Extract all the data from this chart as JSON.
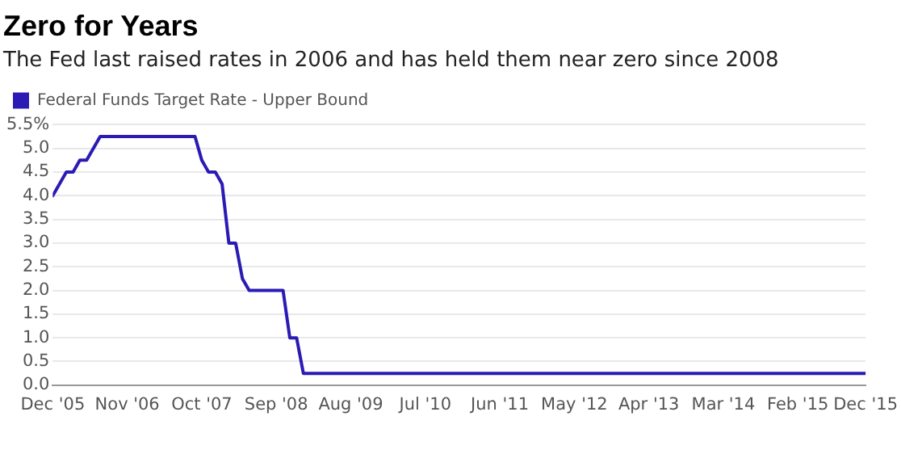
{
  "chart_data": {
    "type": "line",
    "title": "Zero for Years",
    "subtitle": "The Fed last raised rates in 2006 and has held them near zero since 2008",
    "x": [
      "2005-12",
      "2006-02",
      "2006-03",
      "2006-04",
      "2006-05",
      "2006-07",
      "2007-09",
      "2007-10",
      "2007-11",
      "2007-12",
      "2008-01",
      "2008-02",
      "2008-03",
      "2008-04",
      "2008-05",
      "2008-10",
      "2008-11",
      "2008-12",
      "2009-01",
      "2015-12"
    ],
    "series": [
      {
        "name": "Federal Funds Target Rate - Upper Bound",
        "color": "#2b1bb5",
        "values": [
          4.0,
          4.5,
          4.5,
          4.75,
          4.75,
          5.25,
          5.25,
          4.75,
          4.5,
          4.5,
          4.25,
          3.0,
          3.0,
          2.25,
          2.0,
          2.0,
          1.0,
          1.0,
          0.25,
          0.25
        ]
      }
    ],
    "xlim": [
      "2005-12",
      "2015-12"
    ],
    "xticks": [
      {
        "value": "2005-12",
        "label": "Dec '05"
      },
      {
        "value": "2006-11",
        "label": "Nov '06"
      },
      {
        "value": "2007-10",
        "label": "Oct '07"
      },
      {
        "value": "2008-09",
        "label": "Sep '08"
      },
      {
        "value": "2009-08",
        "label": "Aug '09"
      },
      {
        "value": "2010-07",
        "label": "Jul '10"
      },
      {
        "value": "2011-06",
        "label": "Jun '11"
      },
      {
        "value": "2012-05",
        "label": "May '12"
      },
      {
        "value": "2013-04",
        "label": "Apr '13"
      },
      {
        "value": "2014-03",
        "label": "Mar '14"
      },
      {
        "value": "2015-02",
        "label": "Feb '15"
      },
      {
        "value": "2015-12",
        "label": "Dec '15"
      }
    ],
    "ylim": [
      0,
      5.5
    ],
    "yticks": [
      {
        "value": 0,
        "label": "0.0"
      },
      {
        "value": 0.5,
        "label": "0.5"
      },
      {
        "value": 1,
        "label": "1.0"
      },
      {
        "value": 1.5,
        "label": "1.5"
      },
      {
        "value": 2,
        "label": "2.0"
      },
      {
        "value": 2.5,
        "label": "2.5"
      },
      {
        "value": 3,
        "label": "3.0"
      },
      {
        "value": 3.5,
        "label": "3.5"
      },
      {
        "value": 4,
        "label": "4.0"
      },
      {
        "value": 4.5,
        "label": "4.5"
      },
      {
        "value": 5,
        "label": "5.0"
      },
      {
        "value": 5.5,
        "label": "5.5%"
      }
    ],
    "grid": "y",
    "legend": "top left",
    "marker": "none",
    "line_style": "solid"
  }
}
